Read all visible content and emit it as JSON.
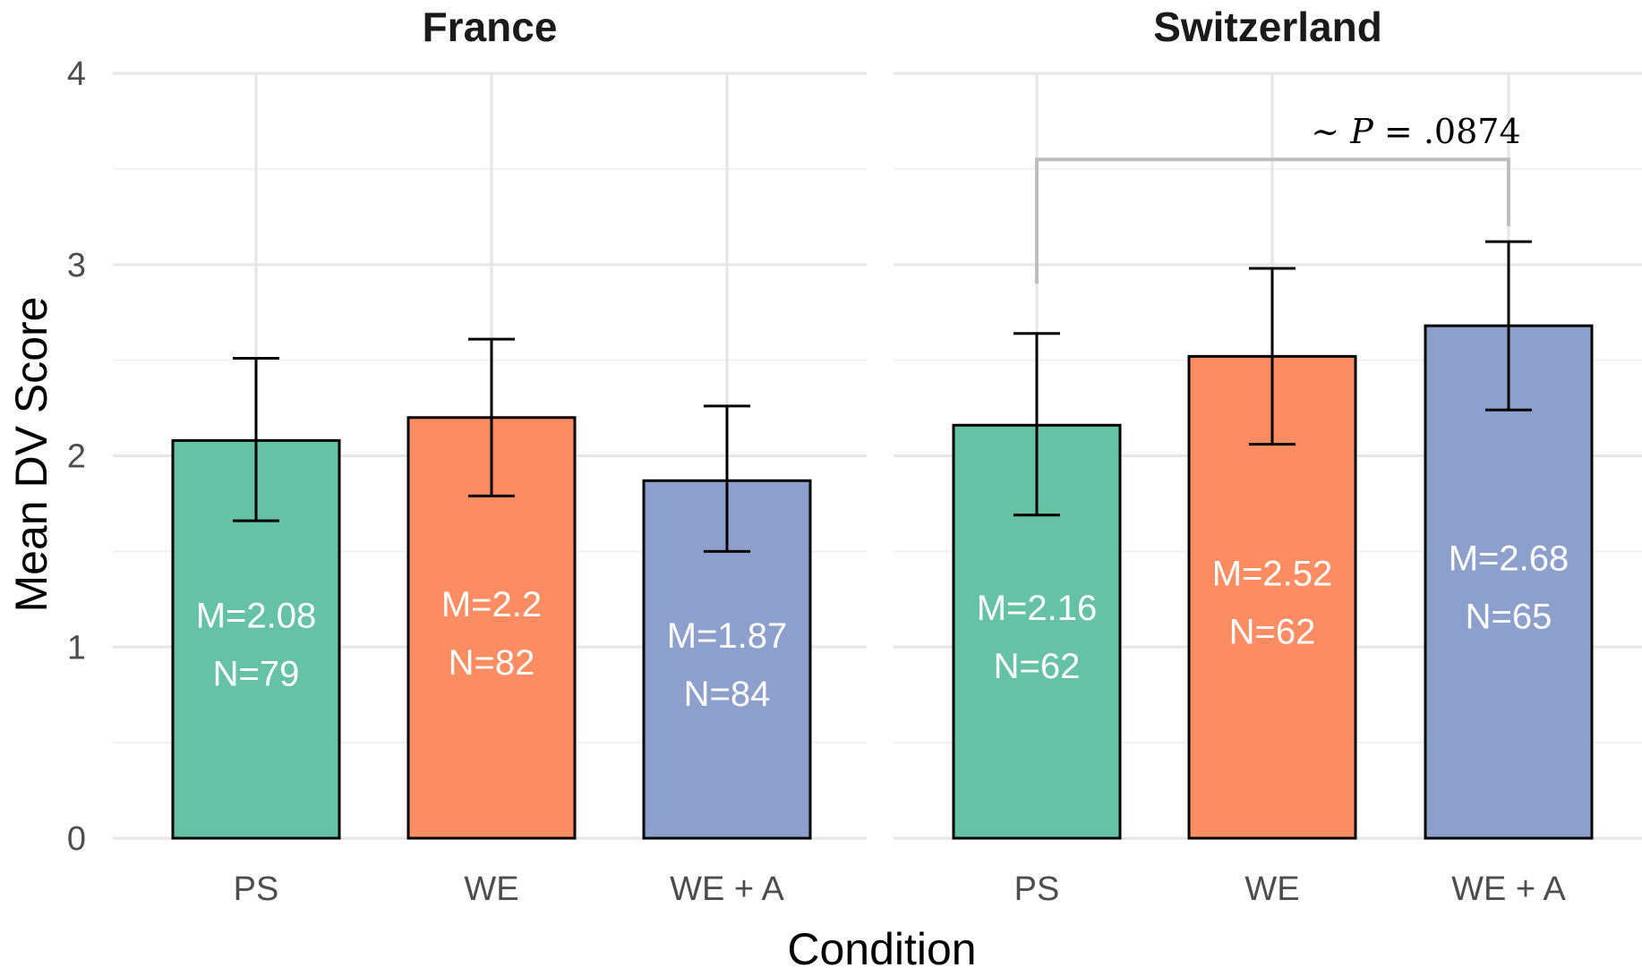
{
  "chart_data": {
    "type": "bar",
    "xlabel": "Condition",
    "ylabel": "Mean DV Score",
    "ylim": [
      0,
      4
    ],
    "yticks": [
      0,
      1,
      2,
      3,
      4
    ],
    "grid": true,
    "categories": [
      "PS",
      "WE",
      "WE + A"
    ],
    "category_colors": [
      "#66c2a5",
      "#fc8d62",
      "#8da0cb"
    ],
    "panels": [
      {
        "title": "France",
        "bars": [
          {
            "category": "PS",
            "mean": 2.08,
            "n": 79,
            "err_low": 1.66,
            "err_high": 2.51,
            "label_mean": "M=2.08",
            "label_n": "N=79"
          },
          {
            "category": "WE",
            "mean": 2.2,
            "n": 82,
            "err_low": 1.79,
            "err_high": 2.61,
            "label_mean": "M=2.2",
            "label_n": "N=82"
          },
          {
            "category": "WE + A",
            "mean": 1.87,
            "n": 84,
            "err_low": 1.5,
            "err_high": 2.26,
            "label_mean": "M=1.87",
            "label_n": "N=84"
          }
        ]
      },
      {
        "title": "Switzerland",
        "bars": [
          {
            "category": "PS",
            "mean": 2.16,
            "n": 62,
            "err_low": 1.69,
            "err_high": 2.64,
            "label_mean": "M=2.16",
            "label_n": "N=62"
          },
          {
            "category": "WE",
            "mean": 2.52,
            "n": 62,
            "err_low": 2.06,
            "err_high": 2.98,
            "label_mean": "M=2.52",
            "label_n": "N=62"
          },
          {
            "category": "WE + A",
            "mean": 2.68,
            "n": 65,
            "err_low": 2.24,
            "err_high": 3.12,
            "label_mean": "M=2.68",
            "label_n": "N=65"
          }
        ],
        "annotation": {
          "from": "PS",
          "to": "WE + A",
          "y_top": 3.55,
          "y_left_end": 2.9,
          "y_right_end": 3.2,
          "prefix": "~ ",
          "p_symbol": "P",
          "suffix": " = .0874",
          "color": "#bebebe"
        }
      }
    ]
  }
}
